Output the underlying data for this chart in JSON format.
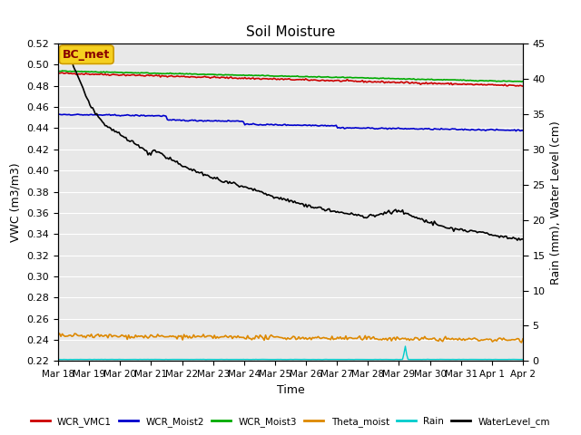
{
  "title": "Soil Moisture",
  "xlabel": "Time",
  "ylabel_left": "VWC (m3/m3)",
  "ylabel_right": "Rain (mm), Water Level (cm)",
  "ylim_left": [
    0.22,
    0.52
  ],
  "ylim_right": [
    0,
    45
  ],
  "yticks_left": [
    0.22,
    0.24,
    0.26,
    0.28,
    0.3,
    0.32,
    0.34,
    0.36,
    0.38,
    0.4,
    0.42,
    0.44,
    0.46,
    0.48,
    0.5,
    0.52
  ],
  "yticks_right": [
    0,
    5,
    10,
    15,
    20,
    25,
    30,
    35,
    40,
    45
  ],
  "xtick_labels": [
    "Mar 18",
    "Mar 19",
    "Mar 20",
    "Mar 21",
    "Mar 22",
    "Mar 23",
    "Mar 24",
    "Mar 25",
    "Mar 26",
    "Mar 27",
    "Mar 28",
    "Mar 29",
    "Mar 30",
    "Mar 31",
    "Apr 1",
    "Apr 2"
  ],
  "n_points": 337,
  "background_color": "#e8e8e8",
  "annotation_text": "BC_met",
  "colors": {
    "WCR_VMC1": "#cc0000",
    "WCR_Moist2": "#0000cc",
    "WCR_Moist3": "#00aa00",
    "Theta_moist": "#dd8800",
    "Rain": "#00cccc",
    "WaterLevel_cm": "#000000"
  },
  "legend_labels": [
    "WCR_VMC1",
    "WCR_Moist2",
    "WCR_Moist3",
    "Theta_moist",
    "Rain",
    "WaterLevel_cm"
  ]
}
